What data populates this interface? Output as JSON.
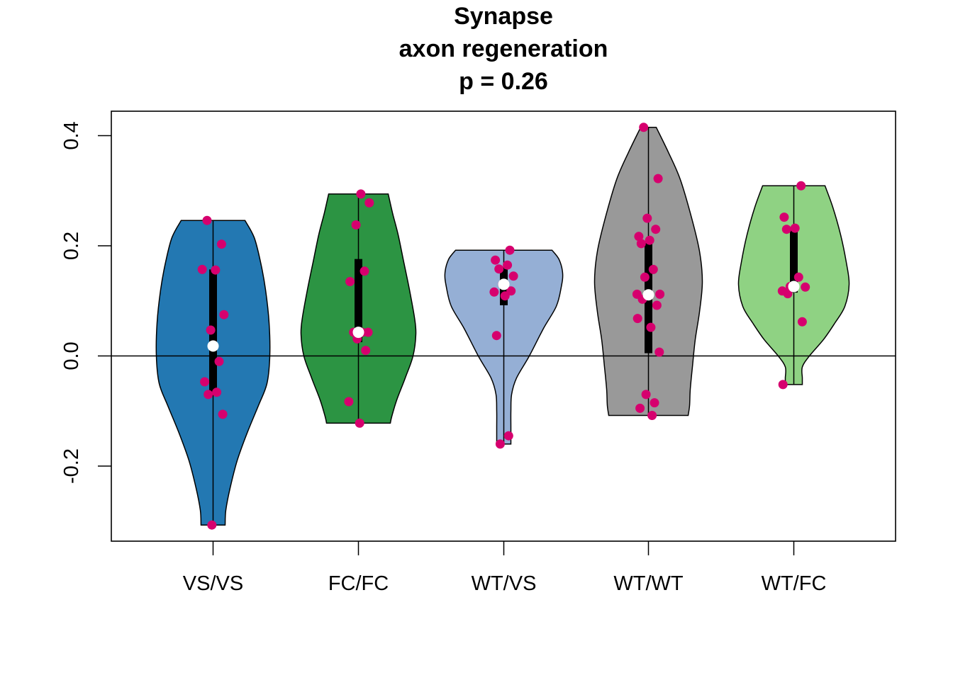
{
  "chart_data": {
    "type": "violin",
    "title_lines": [
      "Synapse",
      "axon regeneration",
      "p = 0.26"
    ],
    "xlabel": "",
    "ylabel": "",
    "ylim": [
      -0.33,
      0.445
    ],
    "yticks": [
      -0.2,
      0.0,
      0.2,
      0.4
    ],
    "ytick_labels": [
      "-0.2",
      "0.0",
      "0.2",
      "0.4"
    ],
    "reference_line": 0.0,
    "point_color": "#D6006E",
    "median_color": "#FFFFFF",
    "groups": [
      {
        "label": "VS/VS",
        "fill": "#2378B2",
        "min": -0.307,
        "max": 0.246,
        "q1": -0.068,
        "median": 0.018,
        "q3": 0.157,
        "density_profile": [
          [
            0.246,
            0.45
          ],
          [
            0.215,
            0.58
          ],
          [
            0.17,
            0.67
          ],
          [
            0.12,
            0.74
          ],
          [
            0.06,
            0.79
          ],
          [
            0.0,
            0.8
          ],
          [
            -0.05,
            0.76
          ],
          [
            -0.09,
            0.64
          ],
          [
            -0.14,
            0.48
          ],
          [
            -0.19,
            0.34
          ],
          [
            -0.24,
            0.24
          ],
          [
            -0.28,
            0.18
          ],
          [
            -0.307,
            0.17
          ]
        ],
        "points": [
          0.246,
          0.203,
          0.157,
          0.156,
          0.075,
          0.047,
          -0.01,
          -0.047,
          -0.066,
          -0.07,
          -0.106,
          -0.307
        ]
      },
      {
        "label": "FC/FC",
        "fill": "#2C9443",
        "min": -0.122,
        "max": 0.294,
        "q1": 0.025,
        "median": 0.043,
        "q3": 0.176,
        "density_profile": [
          [
            0.294,
            0.42
          ],
          [
            0.26,
            0.48
          ],
          [
            0.22,
            0.56
          ],
          [
            0.17,
            0.64
          ],
          [
            0.12,
            0.72
          ],
          [
            0.07,
            0.79
          ],
          [
            0.04,
            0.81
          ],
          [
            0.0,
            0.77
          ],
          [
            -0.04,
            0.66
          ],
          [
            -0.08,
            0.54
          ],
          [
            -0.11,
            0.47
          ],
          [
            -0.122,
            0.45
          ]
        ],
        "points": [
          0.294,
          0.278,
          0.238,
          0.154,
          0.135,
          0.043,
          0.043,
          0.043,
          0.031,
          0.01,
          -0.083,
          -0.122
        ]
      },
      {
        "label": "WT/VS",
        "fill": "#95AFD5",
        "min": -0.16,
        "max": 0.192,
        "q1": 0.092,
        "median": 0.13,
        "q3": 0.158,
        "density_profile": [
          [
            0.192,
            0.68
          ],
          [
            0.175,
            0.78
          ],
          [
            0.15,
            0.83
          ],
          [
            0.125,
            0.81
          ],
          [
            0.09,
            0.74
          ],
          [
            0.05,
            0.56
          ],
          [
            0.0,
            0.36
          ],
          [
            -0.04,
            0.18
          ],
          [
            -0.07,
            0.11
          ],
          [
            -0.1,
            0.1
          ],
          [
            -0.13,
            0.1
          ],
          [
            -0.16,
            0.1
          ]
        ],
        "points": [
          0.192,
          0.174,
          0.165,
          0.158,
          0.145,
          0.13,
          0.118,
          0.116,
          0.109,
          0.037,
          -0.145,
          -0.16
        ]
      },
      {
        "label": "WT/WT",
        "fill": "#999999",
        "min": -0.108,
        "max": 0.415,
        "q1": 0.005,
        "median": 0.111,
        "q3": 0.205,
        "density_profile": [
          [
            0.415,
            0.11
          ],
          [
            0.37,
            0.28
          ],
          [
            0.32,
            0.45
          ],
          [
            0.25,
            0.61
          ],
          [
            0.19,
            0.72
          ],
          [
            0.135,
            0.76
          ],
          [
            0.08,
            0.72
          ],
          [
            0.03,
            0.66
          ],
          [
            -0.02,
            0.62
          ],
          [
            -0.06,
            0.59
          ],
          [
            -0.09,
            0.58
          ],
          [
            -0.108,
            0.56
          ]
        ],
        "points": [
          0.415,
          0.322,
          0.25,
          0.23,
          0.217,
          0.21,
          0.204,
          0.157,
          0.143,
          0.112,
          0.112,
          0.103,
          0.092,
          0.068,
          0.052,
          0.007,
          -0.07,
          -0.085,
          -0.095,
          -0.108
        ]
      },
      {
        "label": "WT/FC",
        "fill": "#8FD283",
        "min": -0.052,
        "max": 0.309,
        "q1": 0.115,
        "median": 0.126,
        "q3": 0.232,
        "density_profile": [
          [
            0.309,
            0.44
          ],
          [
            0.27,
            0.55
          ],
          [
            0.22,
            0.66
          ],
          [
            0.17,
            0.74
          ],
          [
            0.13,
            0.78
          ],
          [
            0.09,
            0.72
          ],
          [
            0.06,
            0.58
          ],
          [
            0.03,
            0.42
          ],
          [
            0.0,
            0.22
          ],
          [
            -0.02,
            0.12
          ],
          [
            -0.04,
            0.12
          ],
          [
            -0.052,
            0.12
          ]
        ],
        "points": [
          0.309,
          0.252,
          0.232,
          0.23,
          0.143,
          0.126,
          0.125,
          0.118,
          0.113,
          0.062,
          -0.052
        ]
      }
    ]
  }
}
